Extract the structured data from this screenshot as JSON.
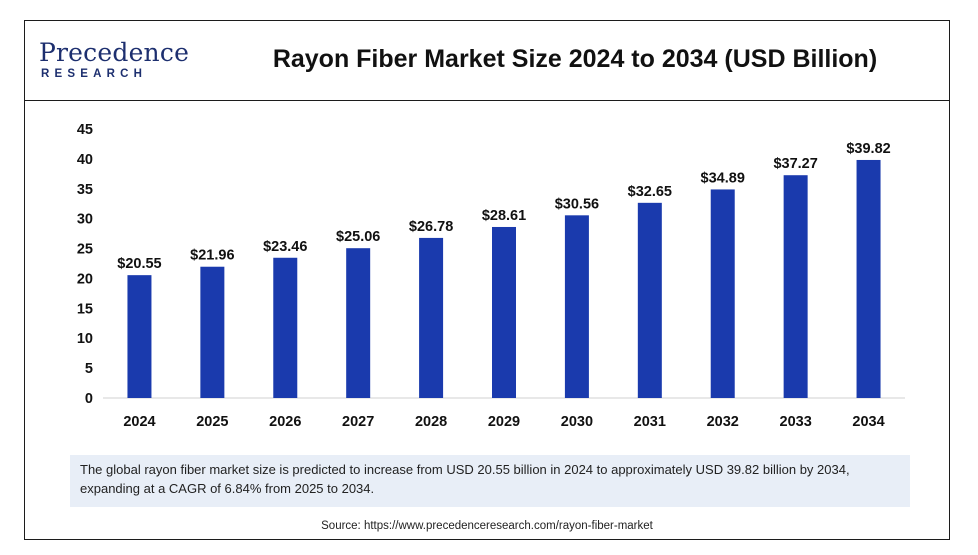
{
  "brand": {
    "logo_main": "Precedence",
    "logo_sub": "RESEARCH"
  },
  "header": {
    "title": "Rayon Fiber Market Size 2024 to 2034 (USD Billion)"
  },
  "footer": {
    "note": "The global rayon fiber market  size is predicted to increase from USD 20.55 billion in 2024 to approximately USD 39.82  billion by 2034, expanding at a CAGR of 6.84% from 2025 to 2034.",
    "source": "Source: https://www.precedenceresearch.com/rayon-fiber-market"
  },
  "colors": {
    "bar": "#1a3aad",
    "text": "#111111",
    "note_bg": "#e8eef7"
  },
  "chart_data": {
    "type": "bar",
    "title": "Rayon Fiber Market Size 2024 to 2034 (USD Billion)",
    "xlabel": "",
    "ylabel": "",
    "categories": [
      "2024",
      "2025",
      "2026",
      "2027",
      "2028",
      "2029",
      "2030",
      "2031",
      "2032",
      "2033",
      "2034"
    ],
    "values": [
      20.55,
      21.96,
      23.46,
      25.06,
      26.78,
      28.61,
      30.56,
      32.65,
      34.89,
      37.27,
      39.82
    ],
    "data_labels": [
      "$20.55",
      "$21.96",
      "$23.46",
      "$25.06",
      "$26.78",
      "$28.61",
      "$30.56",
      "$32.65",
      "$34.89",
      "$37.27",
      "$39.82"
    ],
    "yticks": [
      0,
      5,
      10,
      15,
      20,
      25,
      30,
      35,
      40,
      45
    ],
    "ylim": [
      0,
      45
    ],
    "grid": false,
    "legend": "none"
  }
}
